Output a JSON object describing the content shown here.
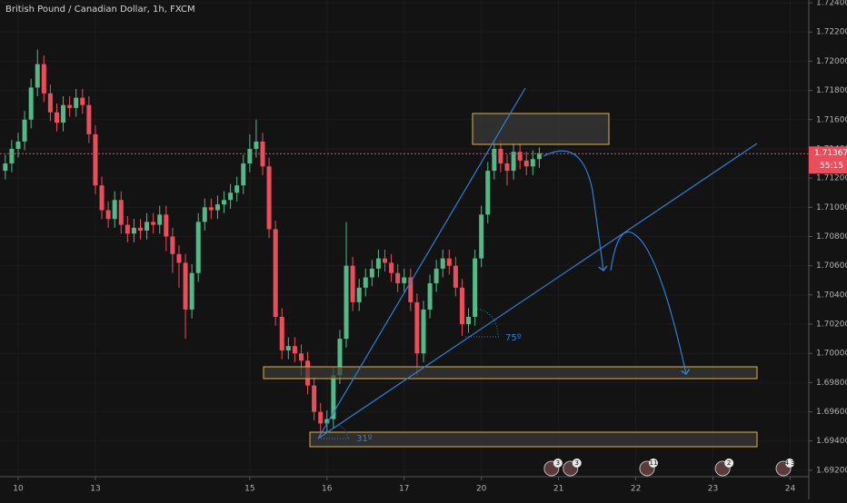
{
  "chart_data": {
    "type": "candlestick",
    "title": "British Pound / Canadian Dollar, 1h, FXCM",
    "up_color": "#53b987",
    "down_color": "#eb4d5c",
    "x": [
      -4,
      -2,
      0,
      2,
      4,
      6,
      8,
      10,
      12,
      14,
      16,
      18,
      20,
      22,
      24,
      26,
      28,
      30,
      32,
      34,
      36,
      38,
      40,
      42,
      44,
      46,
      48,
      50,
      52,
      54,
      56,
      58,
      60,
      62,
      64,
      66,
      68,
      70,
      72,
      74,
      76,
      78,
      80,
      82,
      84,
      86,
      88,
      90,
      92,
      94,
      96,
      98,
      100,
      102,
      104,
      106,
      108,
      110,
      112,
      114,
      116,
      118,
      120,
      122,
      124,
      126,
      128,
      130,
      132,
      134,
      136,
      138,
      140,
      142,
      144,
      146,
      148,
      150,
      152,
      154,
      156,
      158,
      160,
      162
    ],
    "open": [
      1.7125,
      1.713,
      1.714,
      1.7145,
      1.716,
      1.7182,
      1.7198,
      1.7178,
      1.7165,
      1.7158,
      1.717,
      1.7168,
      1.7175,
      1.717,
      1.715,
      1.7115,
      1.7098,
      1.7092,
      1.7105,
      1.7088,
      1.7082,
      1.7086,
      1.7084,
      1.709,
      1.7088,
      1.7095,
      1.708,
      1.7068,
      1.7062,
      1.703,
      1.7055,
      1.709,
      1.71,
      1.7098,
      1.7102,
      1.7105,
      1.711,
      1.7115,
      1.713,
      1.714,
      1.7145,
      1.7128,
      1.7085,
      1.7025,
      1.7002,
      1.7005,
      1.7,
      1.6995,
      1.6978,
      1.696,
      1.6952,
      1.6955,
      1.6985,
      1.701,
      1.706,
      1.7035,
      1.7045,
      1.7052,
      1.7058,
      1.7065,
      1.7062,
      1.7055,
      1.7048,
      1.7052,
      1.7035,
      1.7,
      1.703,
      1.7048,
      1.7058,
      1.7065,
      1.706,
      1.7045,
      1.702,
      1.7025,
      1.7065,
      1.7095,
      1.7125,
      1.714,
      1.713,
      1.7125,
      1.7138,
      1.7132,
      1.7128,
      1.7133
    ],
    "high": [
      1.7136,
      1.7146,
      1.7151,
      1.7166,
      1.7188,
      1.7208,
      1.7204,
      1.7184,
      1.7171,
      1.7176,
      1.7176,
      1.7181,
      1.7181,
      1.7176,
      1.7156,
      1.7121,
      1.7104,
      1.7111,
      1.7111,
      1.7094,
      1.7092,
      1.7092,
      1.7096,
      1.7096,
      1.7101,
      1.7101,
      1.7086,
      1.7074,
      1.7068,
      1.7061,
      1.7096,
      1.7106,
      1.7106,
      1.7108,
      1.7111,
      1.7116,
      1.7121,
      1.7136,
      1.715,
      1.716,
      1.7151,
      1.7134,
      1.7091,
      1.7031,
      1.7011,
      1.7011,
      1.7006,
      1.7001,
      1.6984,
      1.6966,
      1.6961,
      1.6991,
      1.7016,
      1.709,
      1.7066,
      1.7051,
      1.7058,
      1.7064,
      1.7071,
      1.7071,
      1.7068,
      1.7061,
      1.7058,
      1.7058,
      1.7041,
      1.7036,
      1.7054,
      1.7064,
      1.7071,
      1.7071,
      1.7066,
      1.7051,
      1.7031,
      1.7071,
      1.7101,
      1.7131,
      1.7146,
      1.7146,
      1.7136,
      1.7144,
      1.7144,
      1.7138,
      1.7139,
      1.7141
    ],
    "low": [
      1.7119,
      1.7124,
      1.7134,
      1.7139,
      1.7154,
      1.7176,
      1.7172,
      1.7159,
      1.7152,
      1.7152,
      1.7162,
      1.7162,
      1.7164,
      1.7144,
      1.7109,
      1.7092,
      1.7086,
      1.7086,
      1.7082,
      1.7076,
      1.7076,
      1.7078,
      1.7078,
      1.7082,
      1.7082,
      1.707,
      1.7055,
      1.7045,
      1.701,
      1.7024,
      1.7049,
      1.7084,
      1.7092,
      1.7092,
      1.7096,
      1.7099,
      1.7104,
      1.7109,
      1.7124,
      1.7134,
      1.7122,
      1.7079,
      1.7019,
      1.6996,
      1.6996,
      1.6994,
      1.6985,
      1.6972,
      1.6954,
      1.6942,
      1.6946,
      1.6949,
      1.6979,
      1.7004,
      1.7029,
      1.7029,
      1.7039,
      1.7046,
      1.7052,
      1.7056,
      1.7049,
      1.7042,
      1.7042,
      1.7029,
      1.6985,
      1.6994,
      1.7024,
      1.7042,
      1.7052,
      1.7054,
      1.7039,
      1.7012,
      1.7014,
      1.7019,
      1.7059,
      1.7089,
      1.7119,
      1.7124,
      1.7115,
      1.7119,
      1.7126,
      1.7122,
      1.7122,
      1.7127
    ],
    "close": [
      1.713,
      1.714,
      1.7145,
      1.716,
      1.7182,
      1.7198,
      1.7178,
      1.7165,
      1.7158,
      1.717,
      1.7168,
      1.7175,
      1.717,
      1.715,
      1.7115,
      1.7098,
      1.7092,
      1.7105,
      1.7088,
      1.7082,
      1.7086,
      1.7084,
      1.709,
      1.7088,
      1.7095,
      1.708,
      1.7068,
      1.7062,
      1.703,
      1.7055,
      1.709,
      1.71,
      1.7098,
      1.7102,
      1.7105,
      1.711,
      1.7115,
      1.713,
      1.714,
      1.7145,
      1.7128,
      1.7085,
      1.7025,
      1.7002,
      1.7005,
      1.7,
      1.6995,
      1.6978,
      1.696,
      1.6952,
      1.6955,
      1.6985,
      1.701,
      1.706,
      1.7035,
      1.7045,
      1.7052,
      1.7058,
      1.7065,
      1.7062,
      1.7055,
      1.7048,
      1.7052,
      1.7035,
      1.7,
      1.703,
      1.7048,
      1.7058,
      1.7065,
      1.706,
      1.7045,
      1.702,
      1.7025,
      1.7065,
      1.7095,
      1.7125,
      1.714,
      1.713,
      1.7125,
      1.7138,
      1.7132,
      1.7128,
      1.7133,
      1.7137
    ],
    "xlim": [
      -5.65,
      245.8
    ],
    "xticks": [
      {
        "value": 0,
        "label": "10"
      },
      {
        "value": 24,
        "label": "13"
      },
      {
        "value": 72,
        "label": "15"
      },
      {
        "value": 96,
        "label": "16"
      },
      {
        "value": 120,
        "label": "17"
      },
      {
        "value": 144,
        "label": "20"
      },
      {
        "value": 168,
        "label": "21"
      },
      {
        "value": 192,
        "label": "22"
      },
      {
        "value": 216,
        "label": "23"
      },
      {
        "value": 240,
        "label": "24"
      }
    ],
    "ylim": [
      1.69156,
      1.72419
    ],
    "yticks": [
      {
        "value": 1.724,
        "label": "1.72400"
      },
      {
        "value": 1.722,
        "label": "1.72200"
      },
      {
        "value": 1.72,
        "label": "1.72000"
      },
      {
        "value": 1.718,
        "label": "1.71800"
      },
      {
        "value": 1.716,
        "label": "1.71600"
      },
      {
        "value": 1.714,
        "label": "1.71400"
      },
      {
        "value": 1.712,
        "label": "1.71200"
      },
      {
        "value": 1.71,
        "label": "1.71000"
      },
      {
        "value": 1.708,
        "label": "1.70800"
      },
      {
        "value": 1.706,
        "label": "1.70600"
      },
      {
        "value": 1.704,
        "label": "1.70400"
      },
      {
        "value": 1.702,
        "label": "1.70200"
      },
      {
        "value": 1.7,
        "label": "1.70000"
      },
      {
        "value": 1.698,
        "label": "1.69800"
      },
      {
        "value": 1.696,
        "label": "1.69600"
      },
      {
        "value": 1.694,
        "label": "1.69400"
      },
      {
        "value": 1.692,
        "label": "1.69200"
      }
    ],
    "current_price": 1.71367,
    "countdown": "55:15",
    "annotations": [
      "31º",
      "75º"
    ],
    "events": [
      {
        "x": 165.8,
        "label": "3"
      },
      {
        "x": 171.7,
        "label": "3"
      },
      {
        "x": 195.5,
        "label": "11"
      },
      {
        "x": 219,
        "label": "2"
      },
      {
        "x": 237.9,
        "label": "4 3"
      }
    ]
  }
}
